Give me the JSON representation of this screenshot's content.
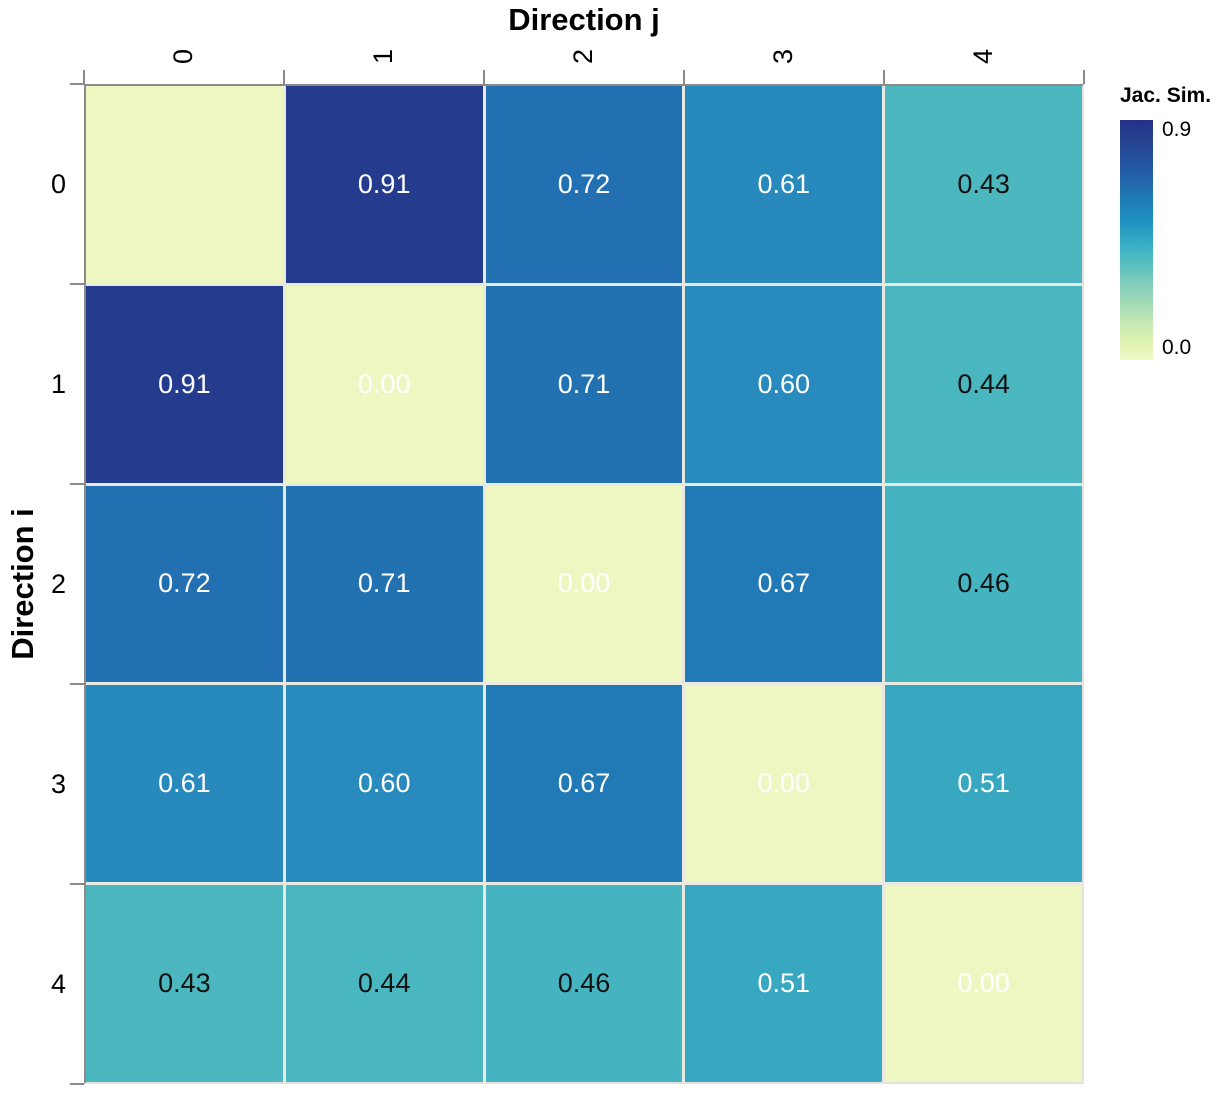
{
  "figure": {
    "x_axis_title": "Direction j",
    "y_axis_title": "Direction i",
    "col_labels": [
      "0",
      "1",
      "2",
      "3",
      "4"
    ],
    "row_labels": [
      "0",
      "1",
      "2",
      "3",
      "4"
    ],
    "legend": {
      "title": "Jac. Sim.",
      "top_label": "0.9",
      "bottom_label": "0.0"
    }
  },
  "colors": {
    "frame_dark": "#8a8a8a",
    "frame_light": "#e2e2e0",
    "grid_gap": "#e9e9e4",
    "high_value": "#253c8e",
    "low_value": "#eef7c2",
    "background": "#ffffff"
  },
  "chart_data": {
    "type": "heatmap",
    "title": "",
    "xlabel": "Direction j",
    "ylabel": "Direction i",
    "x": [
      "0",
      "1",
      "2",
      "3",
      "4"
    ],
    "y": [
      "0",
      "1",
      "2",
      "3",
      "4"
    ],
    "values": [
      [
        null,
        0.91,
        0.72,
        0.61,
        0.43
      ],
      [
        0.91,
        0.0,
        0.71,
        0.6,
        0.44
      ],
      [
        0.72,
        0.71,
        0.0,
        0.67,
        0.46
      ],
      [
        0.61,
        0.6,
        0.67,
        0.0,
        0.51
      ],
      [
        0.43,
        0.44,
        0.46,
        0.51,
        0.0
      ]
    ],
    "colorbar": {
      "title": "Jac. Sim.",
      "tick_labels": [
        "0.9",
        "0.0"
      ],
      "min": 0.0,
      "max": 0.9,
      "colormap": "YlGnBu (dark blue = high, pale yellow-green = low)",
      "position": "right"
    },
    "grid": true,
    "annotations": "cell values printed in each cell; top-left diagonal cell has no label; diagonal 0.00 labels are white on pale background; values <= 0.46 labeled black, others white",
    "cells": [
      {
        "row": 0,
        "col": 0,
        "label": "",
        "bg": "#eef7c2",
        "text_color": ""
      },
      {
        "row": 0,
        "col": 1,
        "label": "0.91",
        "bg": "#253c8e",
        "text_color": "#ffffff"
      },
      {
        "row": 0,
        "col": 2,
        "label": "0.72",
        "bg": "#2270b1",
        "text_color": "#ffffff"
      },
      {
        "row": 0,
        "col": 3,
        "label": "0.61",
        "bg": "#2889bd",
        "text_color": "#ffffff"
      },
      {
        "row": 0,
        "col": 4,
        "label": "0.43",
        "bg": "#4db7bf",
        "text_color": "#111111"
      },
      {
        "row": 1,
        "col": 0,
        "label": "0.91",
        "bg": "#253c8e",
        "text_color": "#ffffff"
      },
      {
        "row": 1,
        "col": 1,
        "label": "0.00",
        "bg": "#eef7c2",
        "text_color": "#ffffff"
      },
      {
        "row": 1,
        "col": 2,
        "label": "0.71",
        "bg": "#2272b1",
        "text_color": "#ffffff"
      },
      {
        "row": 1,
        "col": 3,
        "label": "0.60",
        "bg": "#298abd",
        "text_color": "#ffffff"
      },
      {
        "row": 1,
        "col": 4,
        "label": "0.44",
        "bg": "#4ab6c0",
        "text_color": "#111111"
      },
      {
        "row": 2,
        "col": 0,
        "label": "0.72",
        "bg": "#2270b1",
        "text_color": "#ffffff"
      },
      {
        "row": 2,
        "col": 1,
        "label": "0.71",
        "bg": "#2272b1",
        "text_color": "#ffffff"
      },
      {
        "row": 2,
        "col": 2,
        "label": "0.00",
        "bg": "#eef7c2",
        "text_color": "#ffffff"
      },
      {
        "row": 2,
        "col": 3,
        "label": "0.67",
        "bg": "#2179b6",
        "text_color": "#ffffff"
      },
      {
        "row": 2,
        "col": 4,
        "label": "0.46",
        "bg": "#45b4c0",
        "text_color": "#111111"
      },
      {
        "row": 3,
        "col": 0,
        "label": "0.61",
        "bg": "#2889bd",
        "text_color": "#ffffff"
      },
      {
        "row": 3,
        "col": 1,
        "label": "0.60",
        "bg": "#298abd",
        "text_color": "#ffffff"
      },
      {
        "row": 3,
        "col": 2,
        "label": "0.67",
        "bg": "#2179b6",
        "text_color": "#ffffff"
      },
      {
        "row": 3,
        "col": 3,
        "label": "0.00",
        "bg": "#eef7c2",
        "text_color": "#ffffff"
      },
      {
        "row": 3,
        "col": 4,
        "label": "0.51",
        "bg": "#38a7c0",
        "text_color": "#ffffff"
      },
      {
        "row": 4,
        "col": 0,
        "label": "0.43",
        "bg": "#4db7bf",
        "text_color": "#111111"
      },
      {
        "row": 4,
        "col": 1,
        "label": "0.44",
        "bg": "#4ab6c0",
        "text_color": "#111111"
      },
      {
        "row": 4,
        "col": 2,
        "label": "0.46",
        "bg": "#45b4c0",
        "text_color": "#111111"
      },
      {
        "row": 4,
        "col": 3,
        "label": "0.51",
        "bg": "#38a7c0",
        "text_color": "#ffffff"
      },
      {
        "row": 4,
        "col": 4,
        "label": "0.00",
        "bg": "#eef7c2",
        "text_color": "#ffffff"
      }
    ]
  }
}
